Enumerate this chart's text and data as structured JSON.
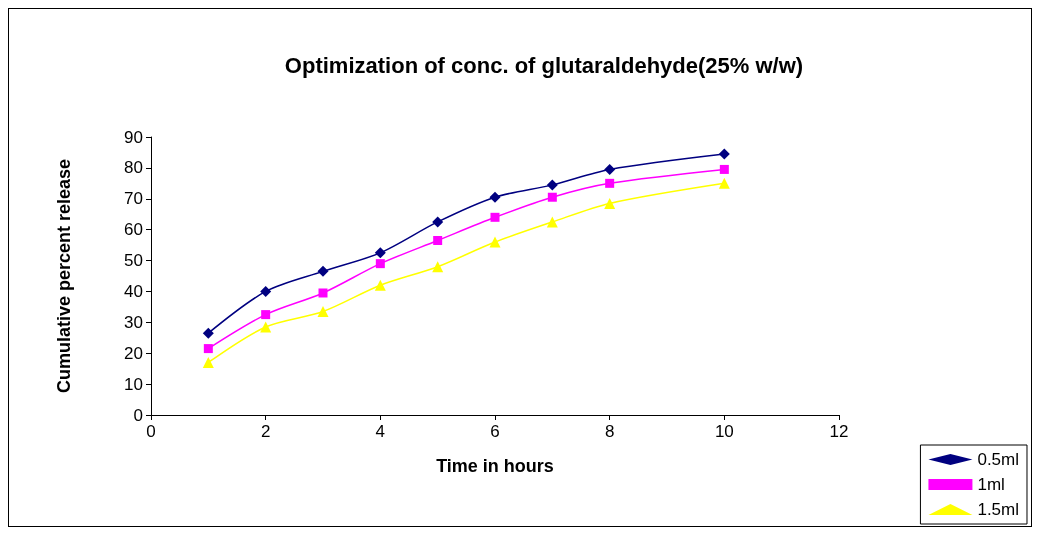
{
  "chart_data": {
    "type": "line",
    "title": "Optimization of conc. of glutaraldehyde(25% w/w)",
    "xlabel": "Time in hours",
    "ylabel": "Cumulative percent release",
    "x": [
      1,
      2,
      3,
      4,
      5,
      6,
      7,
      8,
      10
    ],
    "series": [
      {
        "name": "0.5ml",
        "color": "#000080",
        "marker": "diamond",
        "values": [
          26.5,
          40,
          46.5,
          52.5,
          62.5,
          70.5,
          74.5,
          79.5,
          84.5
        ]
      },
      {
        "name": "1ml",
        "color": "#ff00ff",
        "marker": "square",
        "values": [
          21.5,
          32.5,
          39.5,
          49,
          56.5,
          64,
          70.5,
          75,
          79.5
        ]
      },
      {
        "name": "1.5ml",
        "color": "#ffff00",
        "marker": "triangle",
        "values": [
          17,
          28.5,
          33.5,
          42,
          48,
          56,
          62.5,
          68.5,
          75
        ]
      }
    ],
    "xlim": [
      0,
      12
    ],
    "xticks": [
      0,
      2,
      4,
      6,
      8,
      10,
      12
    ],
    "ylim": [
      0,
      90
    ],
    "yticks": [
      0,
      10,
      20,
      30,
      40,
      50,
      60,
      70,
      80,
      90
    ],
    "grid": false,
    "legend": "bottom right",
    "line_style": "solid"
  }
}
